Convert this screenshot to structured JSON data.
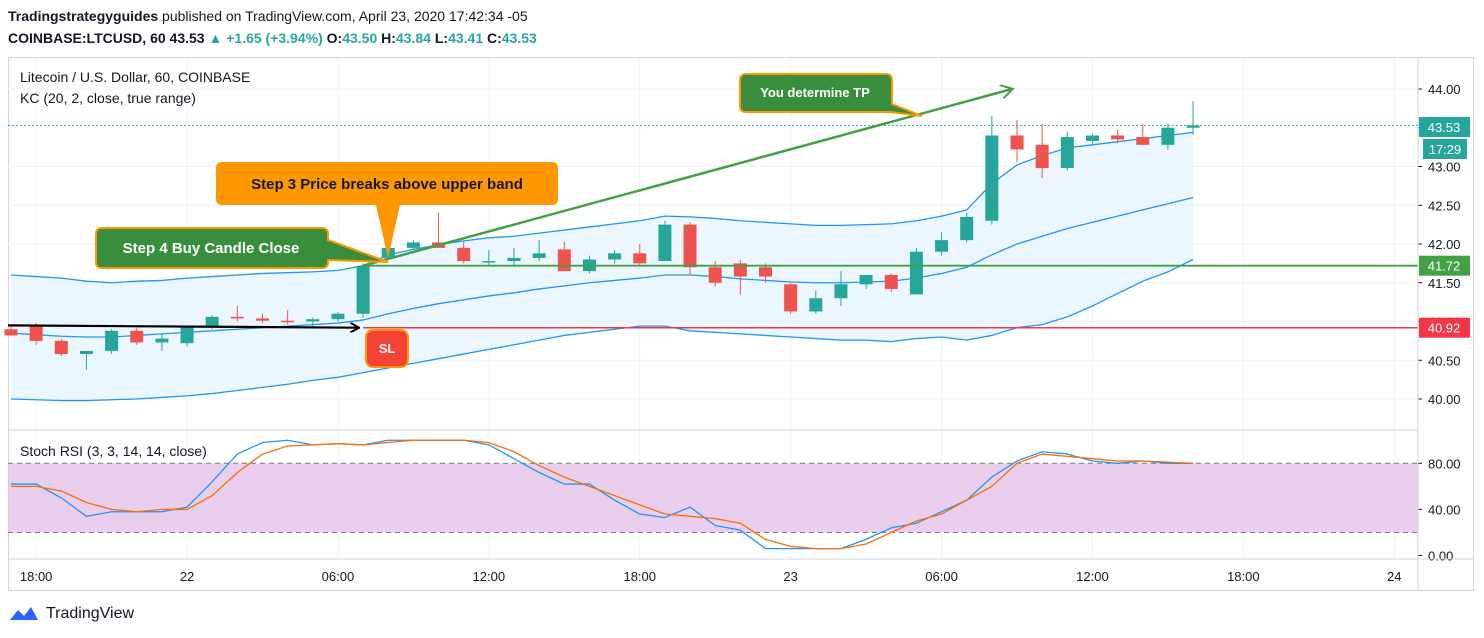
{
  "header": {
    "publisher": "Tradingstrategyguides",
    "published_text": "published on TradingView.com, April 23, 2020 17:42:34 -05",
    "symbol": "COINBASE:LTCUSD, 60",
    "last": "43.53",
    "change": "+1.65 (+3.94%)",
    "o_label": "O:",
    "o": "43.50",
    "h_label": "H:",
    "h": "43.84",
    "l_label": "L:",
    "l": "43.41",
    "c_label": "C:",
    "c": "43.53"
  },
  "legend": {
    "title": "Litecoin / U.S. Dollar, 60, COINBASE",
    "indicator": "KC (20, 2, close, true range)",
    "sub_indicator": "Stoch RSI (3, 3, 14, 14, close)"
  },
  "annotations": {
    "tp": "You determine TP",
    "step3": "Step 3 Price breaks above upper band",
    "step4": "Step 4 Buy Candle Close",
    "sl": "SL"
  },
  "price_labels": {
    "last": "43.53",
    "countdown": "17:29",
    "entry": "41.72",
    "stop": "40.92"
  },
  "footer": {
    "brand": "TradingView"
  },
  "colors": {
    "up": "#26a69a",
    "down": "#ef5350",
    "band": "#2196f3",
    "band_fill": "#e3f2fd",
    "entry_line": "#43a047",
    "stop_line": "#f23645",
    "stoch_k": "#2196f3",
    "stoch_d": "#ff6d00",
    "stoch_fill": "#e1bee7",
    "callout_orange": "#ff9800",
    "callout_green": "#388e3c",
    "callout_red": "#f44336"
  },
  "chart_data": [
    {
      "type": "candlestick",
      "title": "Litecoin / U.S. Dollar, 60, COINBASE",
      "y_ticks": [
        40.0,
        40.5,
        41.0,
        41.5,
        42.0,
        42.5,
        43.0,
        43.5,
        44.0
      ],
      "ylim": [
        39.6,
        44.4
      ],
      "x_ticks": [
        {
          "index": 1,
          "label": "18:00"
        },
        {
          "index": 7,
          "label": "22"
        },
        {
          "index": 13,
          "label": "06:00"
        },
        {
          "index": 19,
          "label": "12:00"
        },
        {
          "index": 25,
          "label": "18:00"
        },
        {
          "index": 31,
          "label": "23"
        },
        {
          "index": 37,
          "label": "06:00"
        },
        {
          "index": 43,
          "label": "12:00"
        },
        {
          "index": 49,
          "label": "18:00"
        },
        {
          "index": 55,
          "label": "24"
        }
      ],
      "candles": [
        [
          40.9,
          40.96,
          40.82,
          40.82
        ],
        [
          40.95,
          40.98,
          40.7,
          40.75
        ],
        [
          40.75,
          40.78,
          40.55,
          40.58
        ],
        [
          40.58,
          40.62,
          40.38,
          40.62
        ],
        [
          40.62,
          40.9,
          40.58,
          40.88
        ],
        [
          40.88,
          40.92,
          40.7,
          40.73
        ],
        [
          40.73,
          40.85,
          40.62,
          40.78
        ],
        [
          40.72,
          40.95,
          40.68,
          40.93
        ],
        [
          40.93,
          41.08,
          40.9,
          41.06
        ],
        [
          41.06,
          41.2,
          41.0,
          41.04
        ],
        [
          41.04,
          41.1,
          40.98,
          41.01
        ],
        [
          41.01,
          41.15,
          40.96,
          41.0
        ],
        [
          41.0,
          41.05,
          40.94,
          41.03
        ],
        [
          41.03,
          41.12,
          41.0,
          41.1
        ],
        [
          41.1,
          41.75,
          41.05,
          41.72
        ],
        [
          41.82,
          42.35,
          41.8,
          41.95
        ],
        [
          41.95,
          42.05,
          41.92,
          42.02
        ],
        [
          42.02,
          42.4,
          41.95,
          41.95
        ],
        [
          41.95,
          42.03,
          41.75,
          41.78
        ],
        [
          41.78,
          41.92,
          41.72,
          41.78
        ],
        [
          41.78,
          41.95,
          41.72,
          41.82
        ],
        [
          41.82,
          42.05,
          41.78,
          41.88
        ],
        [
          41.93,
          42.03,
          41.65,
          41.65
        ],
        [
          41.65,
          41.85,
          41.62,
          41.8
        ],
        [
          41.8,
          41.92,
          41.75,
          41.88
        ],
        [
          41.88,
          42.0,
          41.72,
          41.75
        ],
        [
          41.78,
          42.3,
          41.78,
          42.25
        ],
        [
          42.25,
          42.28,
          41.6,
          41.7
        ],
        [
          41.7,
          41.78,
          41.45,
          41.5
        ],
        [
          41.75,
          41.8,
          41.35,
          41.58
        ],
        [
          41.7,
          41.75,
          41.5,
          41.58
        ],
        [
          41.48,
          41.5,
          41.1,
          41.13
        ],
        [
          41.13,
          41.4,
          41.1,
          41.3
        ],
        [
          41.3,
          41.65,
          41.2,
          41.48
        ],
        [
          41.48,
          41.6,
          41.42,
          41.6
        ],
        [
          41.6,
          41.62,
          41.38,
          41.42
        ],
        [
          41.35,
          41.95,
          41.35,
          41.9
        ],
        [
          41.9,
          42.15,
          41.85,
          42.05
        ],
        [
          42.05,
          42.4,
          42.02,
          42.35
        ],
        [
          42.3,
          43.65,
          42.25,
          43.4
        ],
        [
          43.4,
          43.6,
          43.05,
          43.22
        ],
        [
          43.28,
          43.55,
          42.85,
          42.98
        ],
        [
          42.98,
          43.45,
          42.95,
          43.38
        ],
        [
          43.33,
          43.42,
          43.28,
          43.4
        ],
        [
          43.4,
          43.48,
          43.3,
          43.35
        ],
        [
          43.38,
          43.55,
          43.28,
          43.28
        ],
        [
          43.28,
          43.55,
          43.22,
          43.5
        ],
        [
          43.5,
          43.84,
          43.41,
          43.53
        ]
      ],
      "upper_band": [
        41.6,
        41.58,
        41.56,
        41.52,
        41.5,
        41.52,
        41.53,
        41.56,
        41.58,
        41.6,
        41.62,
        41.63,
        41.64,
        41.66,
        41.72,
        41.86,
        41.93,
        41.99,
        42.04,
        42.08,
        42.1,
        42.14,
        42.18,
        42.22,
        42.26,
        42.3,
        42.36,
        42.35,
        42.33,
        42.3,
        42.28,
        42.26,
        42.24,
        42.24,
        42.25,
        42.26,
        42.3,
        42.36,
        42.44,
        42.78,
        43.02,
        43.14,
        43.24,
        43.28,
        43.32,
        43.36,
        43.4,
        43.44
      ],
      "middle_band": [
        40.85,
        40.83,
        40.81,
        40.8,
        40.8,
        40.82,
        40.84,
        40.86,
        40.88,
        40.9,
        40.92,
        40.94,
        40.96,
        40.98,
        41.02,
        41.1,
        41.17,
        41.23,
        41.28,
        41.33,
        41.37,
        41.42,
        41.46,
        41.5,
        41.53,
        41.56,
        41.6,
        41.6,
        41.58,
        41.55,
        41.53,
        41.51,
        41.5,
        41.5,
        41.51,
        41.52,
        41.56,
        41.62,
        41.7,
        41.86,
        42.0,
        42.1,
        42.2,
        42.28,
        42.36,
        42.44,
        42.52,
        42.6
      ],
      "lower_band": [
        40.0,
        39.99,
        39.98,
        39.98,
        39.99,
        40.0,
        40.02,
        40.04,
        40.07,
        40.11,
        40.15,
        40.19,
        40.24,
        40.28,
        40.34,
        40.4,
        40.46,
        40.52,
        40.58,
        40.64,
        40.7,
        40.76,
        40.82,
        40.86,
        40.9,
        40.94,
        40.94,
        40.88,
        40.86,
        40.84,
        40.82,
        40.8,
        40.78,
        40.76,
        40.76,
        40.74,
        40.78,
        40.8,
        40.76,
        40.82,
        40.92,
        40.96,
        41.06,
        41.2,
        41.36,
        41.52,
        41.64,
        41.8
      ],
      "entry_level": 41.72,
      "stop_level": 40.92,
      "last_price": 43.53,
      "trend_line": [
        {
          "index": 14,
          "price": 41.72
        },
        {
          "index": 39.8,
          "price": 44.0
        }
      ],
      "arrow_line": [
        {
          "index": -0.3,
          "price": 40.95
        },
        {
          "index": 13.8,
          "price": 40.92
        }
      ]
    },
    {
      "type": "line",
      "title": "Stoch RSI (3, 3, 14, 14, close)",
      "y_ticks": [
        0,
        40,
        80
      ],
      "tick_labels": [
        "0.00",
        "40.00",
        "80.00"
      ],
      "ylim": [
        -3,
        108
      ],
      "bands": [
        20,
        80
      ],
      "series": [
        {
          "color": "#2196f3",
          "values": [
            62,
            62,
            50,
            34,
            38,
            38,
            38,
            42,
            64,
            88,
            98,
            100,
            96,
            97,
            96,
            100,
            100,
            100,
            100,
            96,
            84,
            72,
            62,
            62,
            48,
            36,
            33,
            42,
            26,
            22,
            6,
            6,
            6,
            6,
            14,
            24,
            28,
            38,
            48,
            68,
            82,
            90,
            88,
            82,
            80,
            82,
            80,
            80
          ]
        },
        {
          "color": "#ff6d00",
          "values": [
            60,
            60,
            56,
            46,
            40,
            38,
            40,
            40,
            52,
            72,
            88,
            95,
            96,
            97,
            96,
            98,
            100,
            100,
            100,
            98,
            90,
            78,
            68,
            60,
            52,
            44,
            36,
            34,
            32,
            28,
            14,
            8,
            6,
            6,
            10,
            20,
            30,
            36,
            48,
            60,
            80,
            88,
            86,
            84,
            82,
            82,
            81,
            80
          ]
        }
      ]
    }
  ]
}
